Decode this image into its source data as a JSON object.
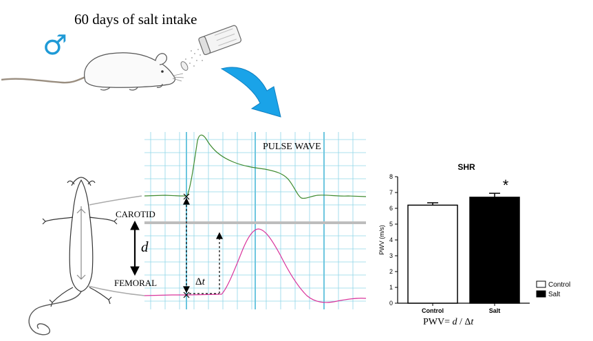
{
  "header": {
    "title": "60 days of salt intake",
    "sex_symbol": "♂"
  },
  "waveform_panel": {
    "title": "PULSE WAVE",
    "carotid_label": "CAROTID",
    "femoral_label": "FEMORAL",
    "distance_symbol": "d",
    "delay_prefix": "Δ",
    "delay_var": "t",
    "carotid_color": "#3d8a2e",
    "femoral_color": "#d9339b",
    "grid_color": "#8fd6e8"
  },
  "formula": {
    "prefix": "PWV= ",
    "num": "d",
    "sep": " / Δ",
    "den": "t"
  },
  "colors": {
    "arrow": "#1aa3e8",
    "male": "#1f9ad6"
  },
  "chart_data": {
    "type": "bar",
    "title": "SHR",
    "ylabel": "PWV (m/s)",
    "xlabel": "",
    "ylim": [
      0,
      8
    ],
    "yticks": [
      "0",
      "1",
      "2",
      "3",
      "4",
      "5",
      "6",
      "7",
      "8"
    ],
    "categories": [
      "Control",
      "Salt"
    ],
    "values": [
      6.2,
      6.7
    ],
    "errors": [
      0.15,
      0.25
    ],
    "fills": [
      "#ffffff",
      "#000000"
    ],
    "significance": [
      "",
      "*"
    ],
    "legend": [
      {
        "label": "Control",
        "fill": "#ffffff"
      },
      {
        "label": "Salt",
        "fill": "#000000"
      }
    ],
    "legend_position": "bottom-right"
  }
}
